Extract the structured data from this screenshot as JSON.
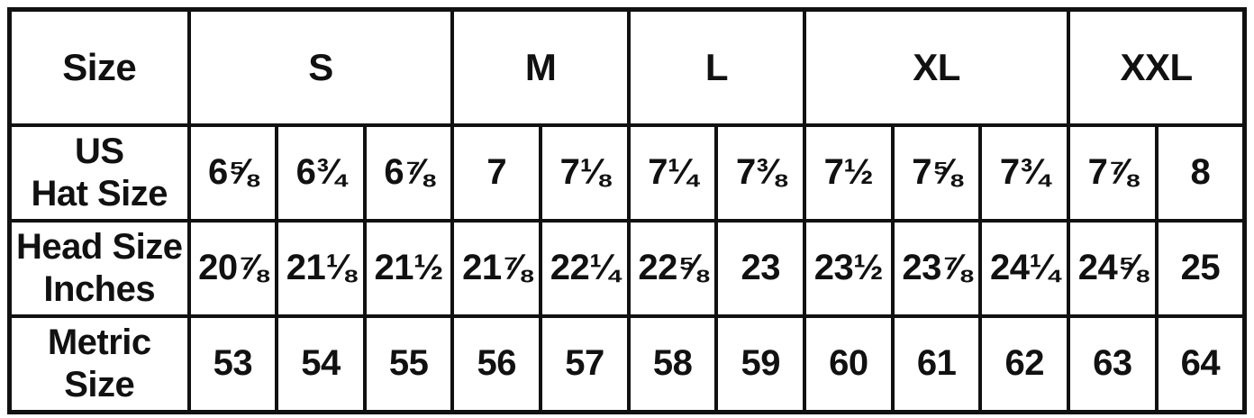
{
  "chart_data": {
    "type": "table",
    "corner_label": "Size",
    "size_groups": [
      {
        "label": "S",
        "colspan": 3
      },
      {
        "label": "M",
        "colspan": 2
      },
      {
        "label": "L",
        "colspan": 2
      },
      {
        "label": "XL",
        "colspan": 3
      },
      {
        "label": "XXL",
        "colspan": 2
      }
    ],
    "rows": [
      {
        "label": "US\nHat Size",
        "values": [
          "6⅝",
          "6¾",
          "6⅞",
          "7",
          "7⅛",
          "7¼",
          "7⅜",
          "7½",
          "7⅝",
          "7¾",
          "7⅞",
          "8"
        ]
      },
      {
        "label": "Head Size\nInches",
        "values": [
          "20⅞",
          "21⅛",
          "21½",
          "21⅞",
          "22¼",
          "22⅝",
          "23",
          "23½",
          "23⅞",
          "24¼",
          "24⅝",
          "25"
        ]
      },
      {
        "label": "Metric\nSize",
        "values": [
          "53",
          "54",
          "55",
          "56",
          "57",
          "58",
          "59",
          "60",
          "61",
          "62",
          "63",
          "64"
        ]
      }
    ]
  },
  "colors": {
    "text": "#111111",
    "border": "#111111",
    "background": "#ffffff"
  }
}
